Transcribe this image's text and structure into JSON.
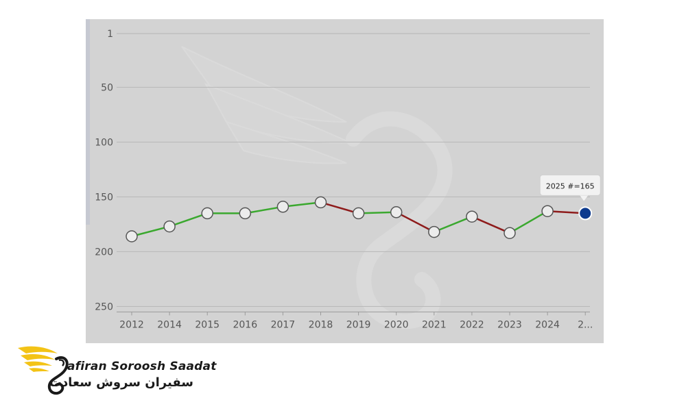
{
  "chart_data": {
    "type": "line",
    "x": [
      "2012",
      "2014",
      "2015",
      "2016",
      "2017",
      "2018",
      "2019",
      "2020",
      "2021",
      "2022",
      "2023",
      "2024",
      "2025"
    ],
    "x_tick_labels": [
      "2012",
      "2014",
      "2015",
      "2016",
      "2017",
      "2018",
      "2019",
      "2020",
      "2021",
      "2022",
      "2023",
      "2024",
      "2..."
    ],
    "series": [
      {
        "values": [
          186,
          177,
          165,
          165,
          159,
          155,
          165,
          164,
          182,
          168,
          183,
          163,
          165
        ]
      }
    ],
    "y_ticks": [
      "1",
      "50",
      "100",
      "150",
      "200",
      "250"
    ],
    "y_tick_values": [
      1,
      50,
      100,
      150,
      200,
      250
    ],
    "ylim": [
      1,
      250
    ],
    "y_inverted": true,
    "grid": true,
    "colors": {
      "improve": "#3aa82e",
      "decline": "#8e1b1b",
      "marker_fill": "#ececec",
      "marker_stroke": "#555555",
      "highlight": "#0d3a8e",
      "background": "#d3d3d3"
    },
    "highlight_index": 12,
    "tooltip": "2025 #=165"
  },
  "brand": {
    "name_en": "Safiran Soroosh Saadat",
    "name_en_visible": "afiran Soroosh Saadat",
    "name_fa": "سفیران سروش سعادت",
    "accent_color": "#f3c316"
  }
}
